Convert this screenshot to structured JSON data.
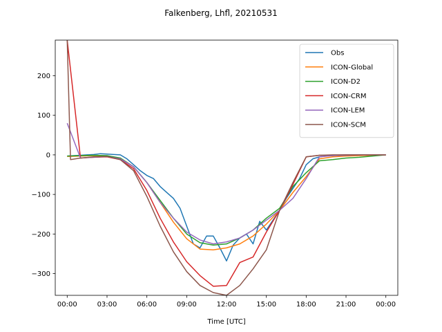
{
  "chart_data": {
    "type": "line",
    "title": "Falkenberg, Lhfl, 20210531",
    "xlabel": "Time [UTC]",
    "ylabel": "",
    "x_unit": "hours since 00:00 UTC",
    "xlim": [
      -0.9,
      24.9
    ],
    "ylim": [
      -355,
      290
    ],
    "xticks": [
      0,
      3,
      6,
      9,
      12,
      15,
      18,
      21,
      24
    ],
    "xtick_labels": [
      "00:00",
      "03:00",
      "06:00",
      "09:00",
      "12:00",
      "15:00",
      "18:00",
      "21:00",
      "00:00"
    ],
    "yticks": [
      -300,
      -200,
      -100,
      0,
      100,
      200
    ],
    "ytick_labels": [
      "−300",
      "−200",
      "−100",
      "0",
      "100",
      "200"
    ],
    "grid": false,
    "legend_position": "top-right",
    "series": [
      {
        "name": "Obs",
        "color": "#1f77b4",
        "x": [
          0,
          0.5,
          1,
          1.5,
          2,
          2.5,
          3,
          3.5,
          4,
          4.5,
          5,
          5.5,
          6,
          6.5,
          7,
          7.5,
          8,
          8.5,
          9,
          9.5,
          10,
          10.5,
          11,
          11.5,
          12,
          12.5,
          13,
          13.5,
          14,
          14.5,
          15,
          15.5,
          16,
          16.5,
          17,
          17.5,
          18,
          18.5,
          19,
          19.5,
          20,
          20.5,
          21,
          21.5,
          22,
          22.5,
          23,
          23.5,
          24
        ],
        "y": [
          -3,
          -2,
          -1,
          0,
          1,
          3,
          2,
          1,
          0,
          -10,
          -25,
          -40,
          -52,
          -60,
          -80,
          -95,
          -110,
          -135,
          -180,
          -225,
          -235,
          -205,
          -205,
          -235,
          -268,
          -228,
          -210,
          -200,
          -225,
          -168,
          -190,
          -165,
          -140,
          -110,
          -85,
          -60,
          -25,
          -10,
          -5,
          -3,
          -2,
          -1,
          -1,
          -1,
          0,
          0,
          0,
          0,
          0
        ]
      },
      {
        "name": "ICON-Global",
        "color": "#ff7f0e",
        "x": [
          0,
          1,
          2,
          3,
          4,
          5,
          6,
          7,
          8,
          9,
          10,
          11,
          12,
          13,
          14,
          15,
          16,
          17,
          18,
          19,
          20,
          21,
          22,
          23,
          24
        ],
        "y": [
          -4,
          -3,
          -2,
          -3,
          -8,
          -30,
          -70,
          -120,
          -170,
          -212,
          -238,
          -240,
          -235,
          -225,
          -205,
          -175,
          -140,
          -95,
          -55,
          -10,
          -5,
          -3,
          -2,
          -1,
          0
        ]
      },
      {
        "name": "ICON-D2",
        "color": "#2ca02c",
        "x": [
          0,
          1,
          2,
          3,
          4,
          5,
          6,
          7,
          8,
          9,
          10,
          11,
          12,
          13,
          14,
          15,
          16,
          17,
          18,
          19,
          20,
          21,
          22,
          23,
          24
        ],
        "y": [
          -3,
          -2,
          -1,
          -2,
          -8,
          -30,
          -70,
          -115,
          -160,
          -200,
          -222,
          -228,
          -225,
          -210,
          -190,
          -160,
          -135,
          -80,
          -45,
          -15,
          -12,
          -8,
          -6,
          -3,
          0
        ]
      },
      {
        "name": "ICON-CRM",
        "color": "#d62728",
        "x": [
          0,
          1,
          2,
          3,
          4,
          5,
          6,
          7,
          8,
          9,
          10,
          11,
          12,
          13,
          14,
          15,
          16,
          17,
          18,
          19,
          20,
          21,
          22,
          23,
          24
        ],
        "y": [
          290,
          -8,
          -6,
          -5,
          -12,
          -35,
          -90,
          -160,
          -220,
          -270,
          -305,
          -332,
          -330,
          -272,
          -258,
          -195,
          -140,
          -75,
          -5,
          -1,
          -1,
          0,
          0,
          0,
          0
        ]
      },
      {
        "name": "ICON-LEM",
        "color": "#9467bd",
        "x": [
          0,
          1,
          2,
          3,
          4,
          5,
          6,
          7,
          8,
          9,
          10,
          11,
          12,
          13,
          14,
          15,
          16,
          17,
          18,
          19,
          20,
          21,
          22,
          23,
          24
        ],
        "y": [
          80,
          -8,
          -6,
          -4,
          -10,
          -30,
          -70,
          -120,
          -160,
          -195,
          -215,
          -225,
          -220,
          -210,
          -190,
          -165,
          -140,
          -110,
          -60,
          -5,
          -2,
          -1,
          0,
          0,
          0
        ]
      },
      {
        "name": "ICON-SCM",
        "color": "#8c564b",
        "x": [
          0,
          0.25,
          1,
          2,
          3,
          4,
          5,
          6,
          7,
          8,
          9,
          10,
          11,
          12,
          13,
          14,
          15,
          16,
          17,
          18,
          19,
          20,
          21,
          22,
          23,
          24
        ],
        "y": [
          290,
          -12,
          -8,
          -5,
          -4,
          -12,
          -40,
          -105,
          -180,
          -245,
          -295,
          -330,
          -348,
          -355,
          -330,
          -288,
          -240,
          -140,
          -70,
          -5,
          -1,
          0,
          0,
          0,
          0,
          0
        ]
      }
    ]
  }
}
